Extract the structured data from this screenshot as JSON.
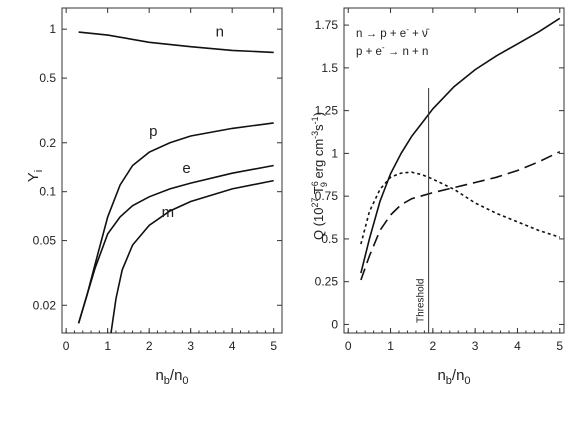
{
  "chart_data": [
    {
      "type": "line",
      "scale_y": "log",
      "xlim": [
        -0.1,
        5.2
      ],
      "ylim": [
        0.0135,
        1.35
      ],
      "x_ticks": [
        0,
        1,
        2,
        3,
        4,
        5
      ],
      "x_tick_labels": [
        "0",
        "1",
        "2",
        "3",
        "4",
        "5"
      ],
      "y_ticks": [
        0.02,
        0.05,
        0.1,
        0.2,
        0.5,
        1
      ],
      "y_tick_labels": [
        "0.02",
        "0.05",
        "0.1",
        "0.2",
        "0.5",
        "1"
      ],
      "xlabel": {
        "main": "n",
        "sub1": "b",
        "mid": "/n",
        "sub2": "0"
      },
      "ylabel": {
        "main": "Y",
        "sub": "i"
      },
      "series": [
        {
          "name": "n",
          "style": "solid",
          "points": [
            [
              0.3,
              0.96
            ],
            [
              1.0,
              0.92
            ],
            [
              2.0,
              0.83
            ],
            [
              3.0,
              0.78
            ],
            [
              4.0,
              0.74
            ],
            [
              5.0,
              0.72
            ]
          ]
        },
        {
          "name": "p",
          "style": "solid",
          "points": [
            [
              0.3,
              0.0155
            ],
            [
              0.5,
              0.023
            ],
            [
              0.7,
              0.036
            ],
            [
              1.0,
              0.07
            ],
            [
              1.3,
              0.11
            ],
            [
              1.6,
              0.145
            ],
            [
              2.0,
              0.175
            ],
            [
              2.5,
              0.2
            ],
            [
              3.0,
              0.22
            ],
            [
              4.0,
              0.245
            ],
            [
              5.0,
              0.265
            ]
          ]
        },
        {
          "name": "e",
          "style": "solid",
          "points": [
            [
              0.3,
              0.0155
            ],
            [
              0.5,
              0.023
            ],
            [
              0.7,
              0.034
            ],
            [
              1.0,
              0.055
            ],
            [
              1.3,
              0.07
            ],
            [
              1.6,
              0.082
            ],
            [
              2.0,
              0.093
            ],
            [
              2.5,
              0.104
            ],
            [
              3.0,
              0.113
            ],
            [
              4.0,
              0.13
            ],
            [
              5.0,
              0.145
            ]
          ]
        },
        {
          "name": "m",
          "style": "solid",
          "points": [
            [
              1.08,
              0.0135
            ],
            [
              1.2,
              0.022
            ],
            [
              1.35,
              0.033
            ],
            [
              1.6,
              0.047
            ],
            [
              2.0,
              0.062
            ],
            [
              2.5,
              0.076
            ],
            [
              3.0,
              0.087
            ],
            [
              4.0,
              0.104
            ],
            [
              5.0,
              0.117
            ]
          ]
        }
      ],
      "labels": [
        {
          "text": "n",
          "x": 3.6,
          "y": 0.9
        },
        {
          "text": "p",
          "x": 2.0,
          "y": 0.22
        },
        {
          "text": "e",
          "x": 2.8,
          "y": 0.13
        },
        {
          "text": "m",
          "x": 2.3,
          "y": 0.07
        }
      ]
    },
    {
      "type": "line",
      "xlim": [
        -0.1,
        5.1
      ],
      "ylim": [
        -0.05,
        1.85
      ],
      "x_ticks": [
        0,
        1,
        2,
        3,
        4,
        5
      ],
      "x_tick_labels": [
        "0",
        "1",
        "2",
        "3",
        "4",
        "5"
      ],
      "y_ticks": [
        0,
        0.25,
        0.5,
        0.75,
        1,
        1.25,
        1.5,
        1.75
      ],
      "y_tick_labels": [
        "0",
        "0.25",
        "0.5",
        "0.75",
        "1",
        "1.25",
        "1.5",
        "1.75"
      ],
      "xlabel": {
        "main": "n",
        "sub1": "b",
        "mid": "/n",
        "sub2": "0"
      },
      "ylabel": "Q (10^27 T_9^6 erg cm^-3 s^-1)",
      "ylabel_parts": {
        "q": "Q (10",
        "exp1": "27",
        "t": " T",
        "sup2": "6",
        "sub2": "9",
        "rest": " erg cm",
        "exp3": "-3",
        "s": "s",
        "exp4": "-1",
        "close": ")"
      },
      "legend": {
        "line1": {
          "left": "n",
          "right": "p + e",
          "sup": "-",
          "tail": " + ν̄"
        },
        "line2": {
          "left": "p + e",
          "sup": "-",
          "right": "n + n"
        }
      },
      "annotation": {
        "text": "Threshold",
        "x": 1.9
      },
      "series": [
        {
          "style": "solid",
          "points": [
            [
              0.3,
              0.3
            ],
            [
              0.5,
              0.5
            ],
            [
              0.75,
              0.72
            ],
            [
              1.0,
              0.88
            ],
            [
              1.25,
              1.0
            ],
            [
              1.5,
              1.1
            ],
            [
              1.75,
              1.18
            ],
            [
              2.0,
              1.26
            ],
            [
              2.5,
              1.39
            ],
            [
              3.0,
              1.49
            ],
            [
              3.5,
              1.57
            ],
            [
              4.0,
              1.64
            ],
            [
              4.5,
              1.71
            ],
            [
              5.0,
              1.79
            ]
          ]
        },
        {
          "style": "short-dash",
          "points": [
            [
              0.3,
              0.47
            ],
            [
              0.5,
              0.66
            ],
            [
              0.75,
              0.79
            ],
            [
              1.0,
              0.86
            ],
            [
              1.25,
              0.885
            ],
            [
              1.5,
              0.89
            ],
            [
              1.75,
              0.875
            ],
            [
              2.0,
              0.85
            ],
            [
              2.5,
              0.79
            ],
            [
              3.0,
              0.71
            ],
            [
              3.5,
              0.65
            ],
            [
              4.0,
              0.6
            ],
            [
              4.5,
              0.55
            ],
            [
              5.0,
              0.51
            ]
          ]
        },
        {
          "style": "long-dash",
          "points": [
            [
              0.3,
              0.26
            ],
            [
              0.5,
              0.4
            ],
            [
              0.75,
              0.55
            ],
            [
              1.0,
              0.64
            ],
            [
              1.25,
              0.7
            ],
            [
              1.5,
              0.735
            ],
            [
              2.0,
              0.77
            ],
            [
              2.5,
              0.8
            ],
            [
              3.0,
              0.83
            ],
            [
              3.5,
              0.86
            ],
            [
              4.0,
              0.9
            ],
            [
              4.5,
              0.95
            ],
            [
              5.0,
              1.01
            ]
          ]
        }
      ]
    }
  ]
}
